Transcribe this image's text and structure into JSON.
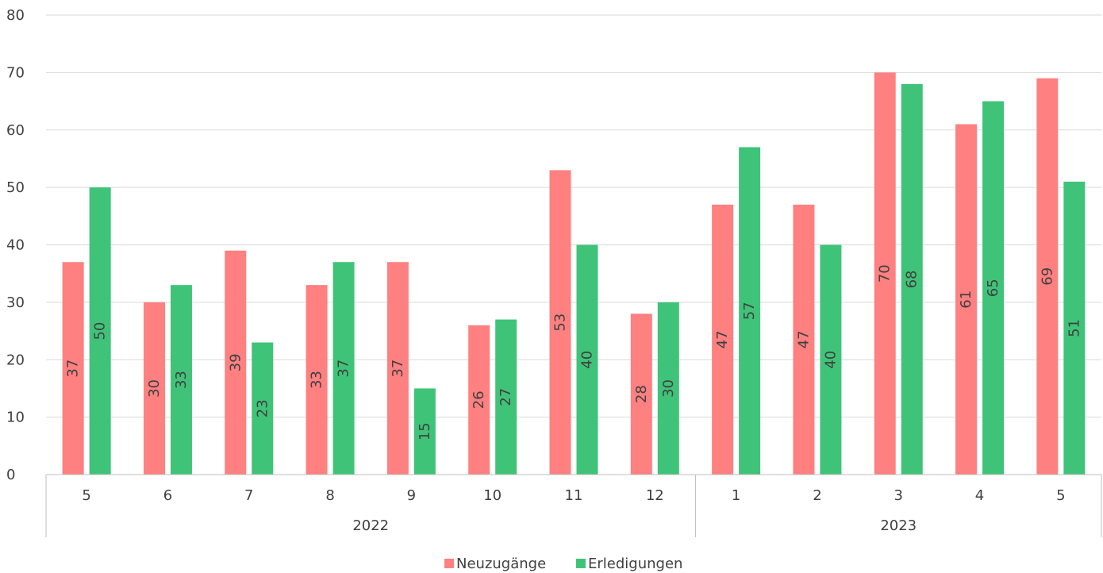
{
  "chart_data": {
    "type": "bar",
    "categories": [
      "5",
      "6",
      "7",
      "8",
      "9",
      "10",
      "11",
      "12",
      "1",
      "2",
      "3",
      "4",
      "5"
    ],
    "groups": [
      {
        "label": "2022",
        "start": 0,
        "end": 7
      },
      {
        "label": "2023",
        "start": 8,
        "end": 12
      }
    ],
    "series": [
      {
        "name": "Neuzugänge",
        "color": "#FF8080",
        "values": [
          37,
          30,
          39,
          33,
          37,
          26,
          53,
          28,
          47,
          47,
          70,
          61,
          69
        ]
      },
      {
        "name": "Erledigungen",
        "color": "#3FC378",
        "values": [
          50,
          33,
          23,
          37,
          15,
          27,
          40,
          30,
          57,
          40,
          68,
          65,
          51
        ]
      }
    ],
    "ylim": [
      0,
      80
    ],
    "yticks": [
      0,
      10,
      20,
      30,
      40,
      50,
      60,
      70,
      80
    ],
    "grid": true,
    "legend_position": "bottom-center",
    "data_labels": "rotated-vertical"
  }
}
